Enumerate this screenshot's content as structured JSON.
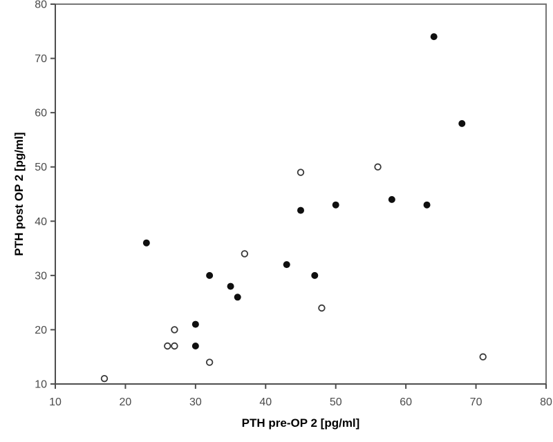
{
  "chart_data": {
    "type": "scatter",
    "title": "",
    "xlabel": "PTH pre-OP 2 [pg/ml]",
    "ylabel": "PTH post OP 2 [pg/ml]",
    "xlim": [
      10,
      80
    ],
    "ylim": [
      10,
      80
    ],
    "xticks": [
      10,
      20,
      30,
      40,
      50,
      60,
      70,
      80
    ],
    "yticks": [
      10,
      20,
      30,
      40,
      50,
      60,
      70,
      80
    ],
    "grid": false,
    "legend_position": "none",
    "frame_color": "#757575",
    "axis_color": "#4d4d4d",
    "tick_label_color": "#4a4a4a",
    "background_color": "#ffffff",
    "series": [
      {
        "name": "filled circles",
        "marker": "filled-circle",
        "color": "#0f0f0f",
        "points": [
          [
            23,
            36
          ],
          [
            30,
            17
          ],
          [
            30,
            21
          ],
          [
            32,
            30
          ],
          [
            35,
            28
          ],
          [
            36,
            26
          ],
          [
            43,
            32
          ],
          [
            45,
            42
          ],
          [
            47,
            30
          ],
          [
            50,
            43
          ],
          [
            58,
            44
          ],
          [
            63,
            43
          ],
          [
            64,
            74
          ],
          [
            68,
            58
          ]
        ]
      },
      {
        "name": "open circles",
        "marker": "open-circle",
        "color": "#383838",
        "fill": "#ffffff",
        "points": [
          [
            17,
            11
          ],
          [
            26,
            17
          ],
          [
            27,
            17
          ],
          [
            27,
            20
          ],
          [
            32,
            14
          ],
          [
            37,
            34
          ],
          [
            45,
            49
          ],
          [
            48,
            24
          ],
          [
            56,
            50
          ],
          [
            71,
            15
          ]
        ]
      }
    ]
  }
}
